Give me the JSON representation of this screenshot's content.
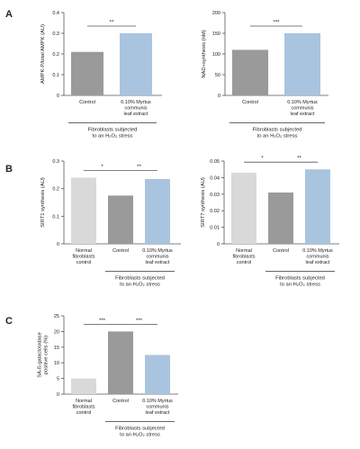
{
  "panel_labels": [
    "A",
    "B",
    "C"
  ],
  "colors": {
    "light_gray": "#d9d9d9",
    "dark_gray": "#9a9a9a",
    "light_blue": "#a9c4de",
    "axis": "#555555"
  },
  "chart_data": [
    {
      "id": "a1",
      "type": "bar",
      "ylabel": "AMPK-P/total AMPK (AU)",
      "ylim": [
        0,
        0.4
      ],
      "yticks": [
        0,
        0.1,
        0.2,
        0.3,
        0.4
      ],
      "categories": [
        [
          "Control"
        ],
        [
          "0.10% Myrtus",
          "communis",
          "leaf extract"
        ]
      ],
      "values": [
        0.21,
        0.3
      ],
      "bar_colors": [
        "dark_gray",
        "light_blue"
      ],
      "significance": [
        {
          "from": 0,
          "to": 1,
          "label": "**"
        }
      ],
      "group_label": [
        "Fibroblasts subjected",
        "to an H₂O₂ stress"
      ],
      "group_from": 0,
      "group_to": 1
    },
    {
      "id": "a2",
      "type": "bar",
      "ylabel": "NAD+synthesis (nM)",
      "ylim": [
        0,
        200
      ],
      "yticks": [
        0,
        50,
        100,
        150,
        200
      ],
      "categories": [
        [
          "Control"
        ],
        [
          "0.10% Myrtus",
          "communis",
          "leaf extract"
        ]
      ],
      "values": [
        110,
        150
      ],
      "bar_colors": [
        "dark_gray",
        "light_blue"
      ],
      "significance": [
        {
          "from": 0,
          "to": 1,
          "label": "***"
        }
      ],
      "group_label": [
        "Fibroblasts subjected",
        "to an H₂O₂ stress"
      ],
      "group_from": 0,
      "group_to": 1
    },
    {
      "id": "b1",
      "type": "bar",
      "ylabel": "SIRT1 synthesis (AU)",
      "ylim": [
        0,
        0.3
      ],
      "yticks": [
        0,
        0.1,
        0.2,
        0.3
      ],
      "categories": [
        [
          "Normal",
          "fibroblasts",
          "control"
        ],
        [
          "Control"
        ],
        [
          "0.10% Myrtus",
          "communis",
          "leaf extract"
        ]
      ],
      "values": [
        0.24,
        0.175,
        0.235
      ],
      "bar_colors": [
        "light_gray",
        "dark_gray",
        "light_blue"
      ],
      "significance": [
        {
          "from": 0,
          "to": 1,
          "label": "*"
        },
        {
          "from": 1,
          "to": 2,
          "label": "**"
        }
      ],
      "group_label": [
        "Fibroblasts subjected",
        "to an H₂O₂ stress"
      ],
      "group_from": 1,
      "group_to": 2
    },
    {
      "id": "b2",
      "type": "bar",
      "ylabel": "SIRT7 synthesis (AU)",
      "ylim": [
        0,
        0.05
      ],
      "yticks": [
        0,
        0.01,
        0.02,
        0.03,
        0.04,
        0.05
      ],
      "categories": [
        [
          "Normal",
          "fibroblasts",
          "control"
        ],
        [
          "Control"
        ],
        [
          "0.10% Myrtus",
          "communis",
          "leaf extract"
        ]
      ],
      "values": [
        0.043,
        0.031,
        0.045
      ],
      "bar_colors": [
        "light_gray",
        "dark_gray",
        "light_blue"
      ],
      "significance": [
        {
          "from": 0,
          "to": 1,
          "label": "*"
        },
        {
          "from": 1,
          "to": 2,
          "label": "**"
        }
      ],
      "group_label": [
        "Fibroblasts subjected",
        "to an H₂O₂ stress"
      ],
      "group_from": 1,
      "group_to": 2
    },
    {
      "id": "c1",
      "type": "bar",
      "ylabel": [
        "SA-ß-galactosidase",
        "positive cells (%)"
      ],
      "ylim": [
        0,
        25
      ],
      "yticks": [
        0,
        5,
        10,
        15,
        20,
        25
      ],
      "categories": [
        [
          "Normal",
          "fibroblasts",
          "control"
        ],
        [
          "Control"
        ],
        [
          "0.10% Myrtus",
          "communis",
          "leaf extract"
        ]
      ],
      "values": [
        5,
        20,
        12.5
      ],
      "bar_colors": [
        "light_gray",
        "dark_gray",
        "light_blue"
      ],
      "significance": [
        {
          "from": 0,
          "to": 1,
          "label": "***"
        },
        {
          "from": 1,
          "to": 2,
          "label": "***"
        }
      ],
      "group_label": [
        "Fibroblasts subjected",
        "to an H₂O₂ stress"
      ],
      "group_from": 1,
      "group_to": 2
    }
  ]
}
